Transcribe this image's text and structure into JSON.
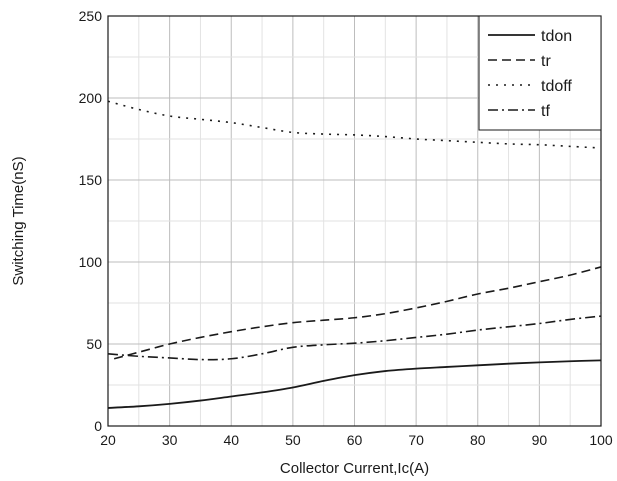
{
  "chart_data": {
    "type": "line",
    "xlabel": "Collector Current,Ic(A)",
    "ylabel": "Switching Time(nS)",
    "xlim": [
      20,
      100
    ],
    "ylim": [
      0,
      250
    ],
    "xticks": [
      20,
      30,
      40,
      50,
      60,
      70,
      80,
      90,
      100
    ],
    "yticks": [
      0,
      50,
      100,
      150,
      200,
      250
    ],
    "grid": true,
    "legend_position": "top-right",
    "series": [
      {
        "name": "tdon",
        "style": "solid",
        "x": [
          20,
          25,
          30,
          35,
          40,
          45,
          50,
          55,
          60,
          65,
          70,
          75,
          80,
          85,
          90,
          95,
          100
        ],
        "y": [
          11,
          12,
          13.5,
          15.5,
          18,
          20.5,
          23.5,
          27.5,
          31,
          33.5,
          35,
          36,
          37,
          38,
          38.8,
          39.5,
          40
        ]
      },
      {
        "name": "tr",
        "style": "dashed",
        "x": [
          21,
          25,
          30,
          35,
          40,
          45,
          50,
          55,
          60,
          65,
          70,
          75,
          80,
          85,
          90,
          95,
          100
        ],
        "y": [
          41,
          45,
          50,
          54,
          57.5,
          60.5,
          63,
          64.5,
          66,
          68.5,
          72,
          76,
          80.5,
          84,
          88,
          92,
          97
        ]
      },
      {
        "name": "tdoff",
        "style": "dotted",
        "x": [
          20,
          25,
          30,
          35,
          40,
          45,
          50,
          55,
          60,
          65,
          70,
          75,
          80,
          85,
          90,
          95,
          100
        ],
        "y": [
          198,
          193,
          189,
          187,
          185,
          182,
          179,
          178,
          177.5,
          176.5,
          175,
          174,
          173,
          172,
          171.5,
          170.5,
          169.5
        ]
      },
      {
        "name": "tf",
        "style": "dashdot",
        "x": [
          20,
          25,
          30,
          35,
          40,
          45,
          50,
          55,
          60,
          65,
          70,
          75,
          80,
          85,
          90,
          95,
          100
        ],
        "y": [
          44,
          42.5,
          41.5,
          40.5,
          41,
          44,
          48,
          49.5,
          50.5,
          52,
          54,
          56,
          58.5,
          60.5,
          62.5,
          65,
          67
        ]
      }
    ]
  }
}
